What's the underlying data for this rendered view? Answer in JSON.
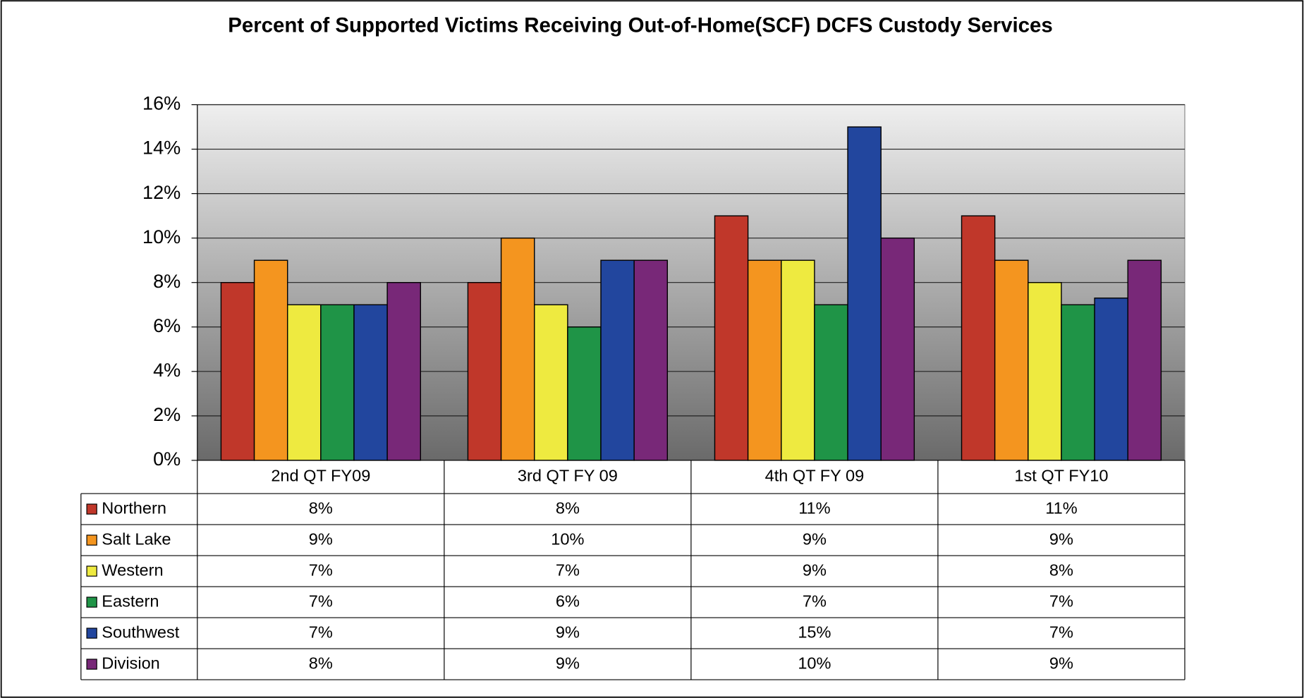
{
  "chart_data": {
    "type": "bar",
    "title": "Percent of Supported Victims Receiving Out-of-Home(SCF) DCFS Custody Services",
    "categories": [
      "2nd QT FY09",
      "3rd QT FY 09",
      "4th QT FY 09",
      "1st QT FY10"
    ],
    "series": [
      {
        "name": "Northern",
        "color": "#c0372a",
        "values": [
          8,
          8,
          11,
          11
        ],
        "value_labels": [
          "8%",
          "8%",
          "11%",
          "11%"
        ]
      },
      {
        "name": "Salt Lake",
        "color": "#f4951f",
        "values": [
          9,
          10,
          9,
          9
        ],
        "value_labels": [
          "9%",
          "10%",
          "9%",
          "9%"
        ]
      },
      {
        "name": "Western",
        "color": "#eeea40",
        "values": [
          7,
          7,
          9,
          8
        ],
        "value_labels": [
          "7%",
          "7%",
          "9%",
          "8%"
        ]
      },
      {
        "name": "Eastern",
        "color": "#1f9447",
        "values": [
          7,
          6,
          7,
          7
        ],
        "value_labels": [
          "7%",
          "6%",
          "7%",
          "7%"
        ]
      },
      {
        "name": "Southwest",
        "color": "#22469e",
        "values": [
          7,
          9,
          15,
          7.3
        ],
        "value_labels": [
          "7%",
          "9%",
          "15%",
          "7%"
        ]
      },
      {
        "name": "Division",
        "color": "#782878",
        "values": [
          8,
          9,
          10,
          9
        ],
        "value_labels": [
          "8%",
          "9%",
          "10%",
          "9%"
        ]
      }
    ],
    "ylim": [
      0,
      16
    ],
    "yticks": [
      {
        "value": 0,
        "label": "0%"
      },
      {
        "value": 2,
        "label": "2%"
      },
      {
        "value": 4,
        "label": "4%"
      },
      {
        "value": 6,
        "label": "6%"
      },
      {
        "value": 8,
        "label": "8%"
      },
      {
        "value": 10,
        "label": "10%"
      },
      {
        "value": 12,
        "label": "12%"
      },
      {
        "value": 14,
        "label": "14%"
      },
      {
        "value": 16,
        "label": "16%"
      }
    ],
    "grid": true
  }
}
